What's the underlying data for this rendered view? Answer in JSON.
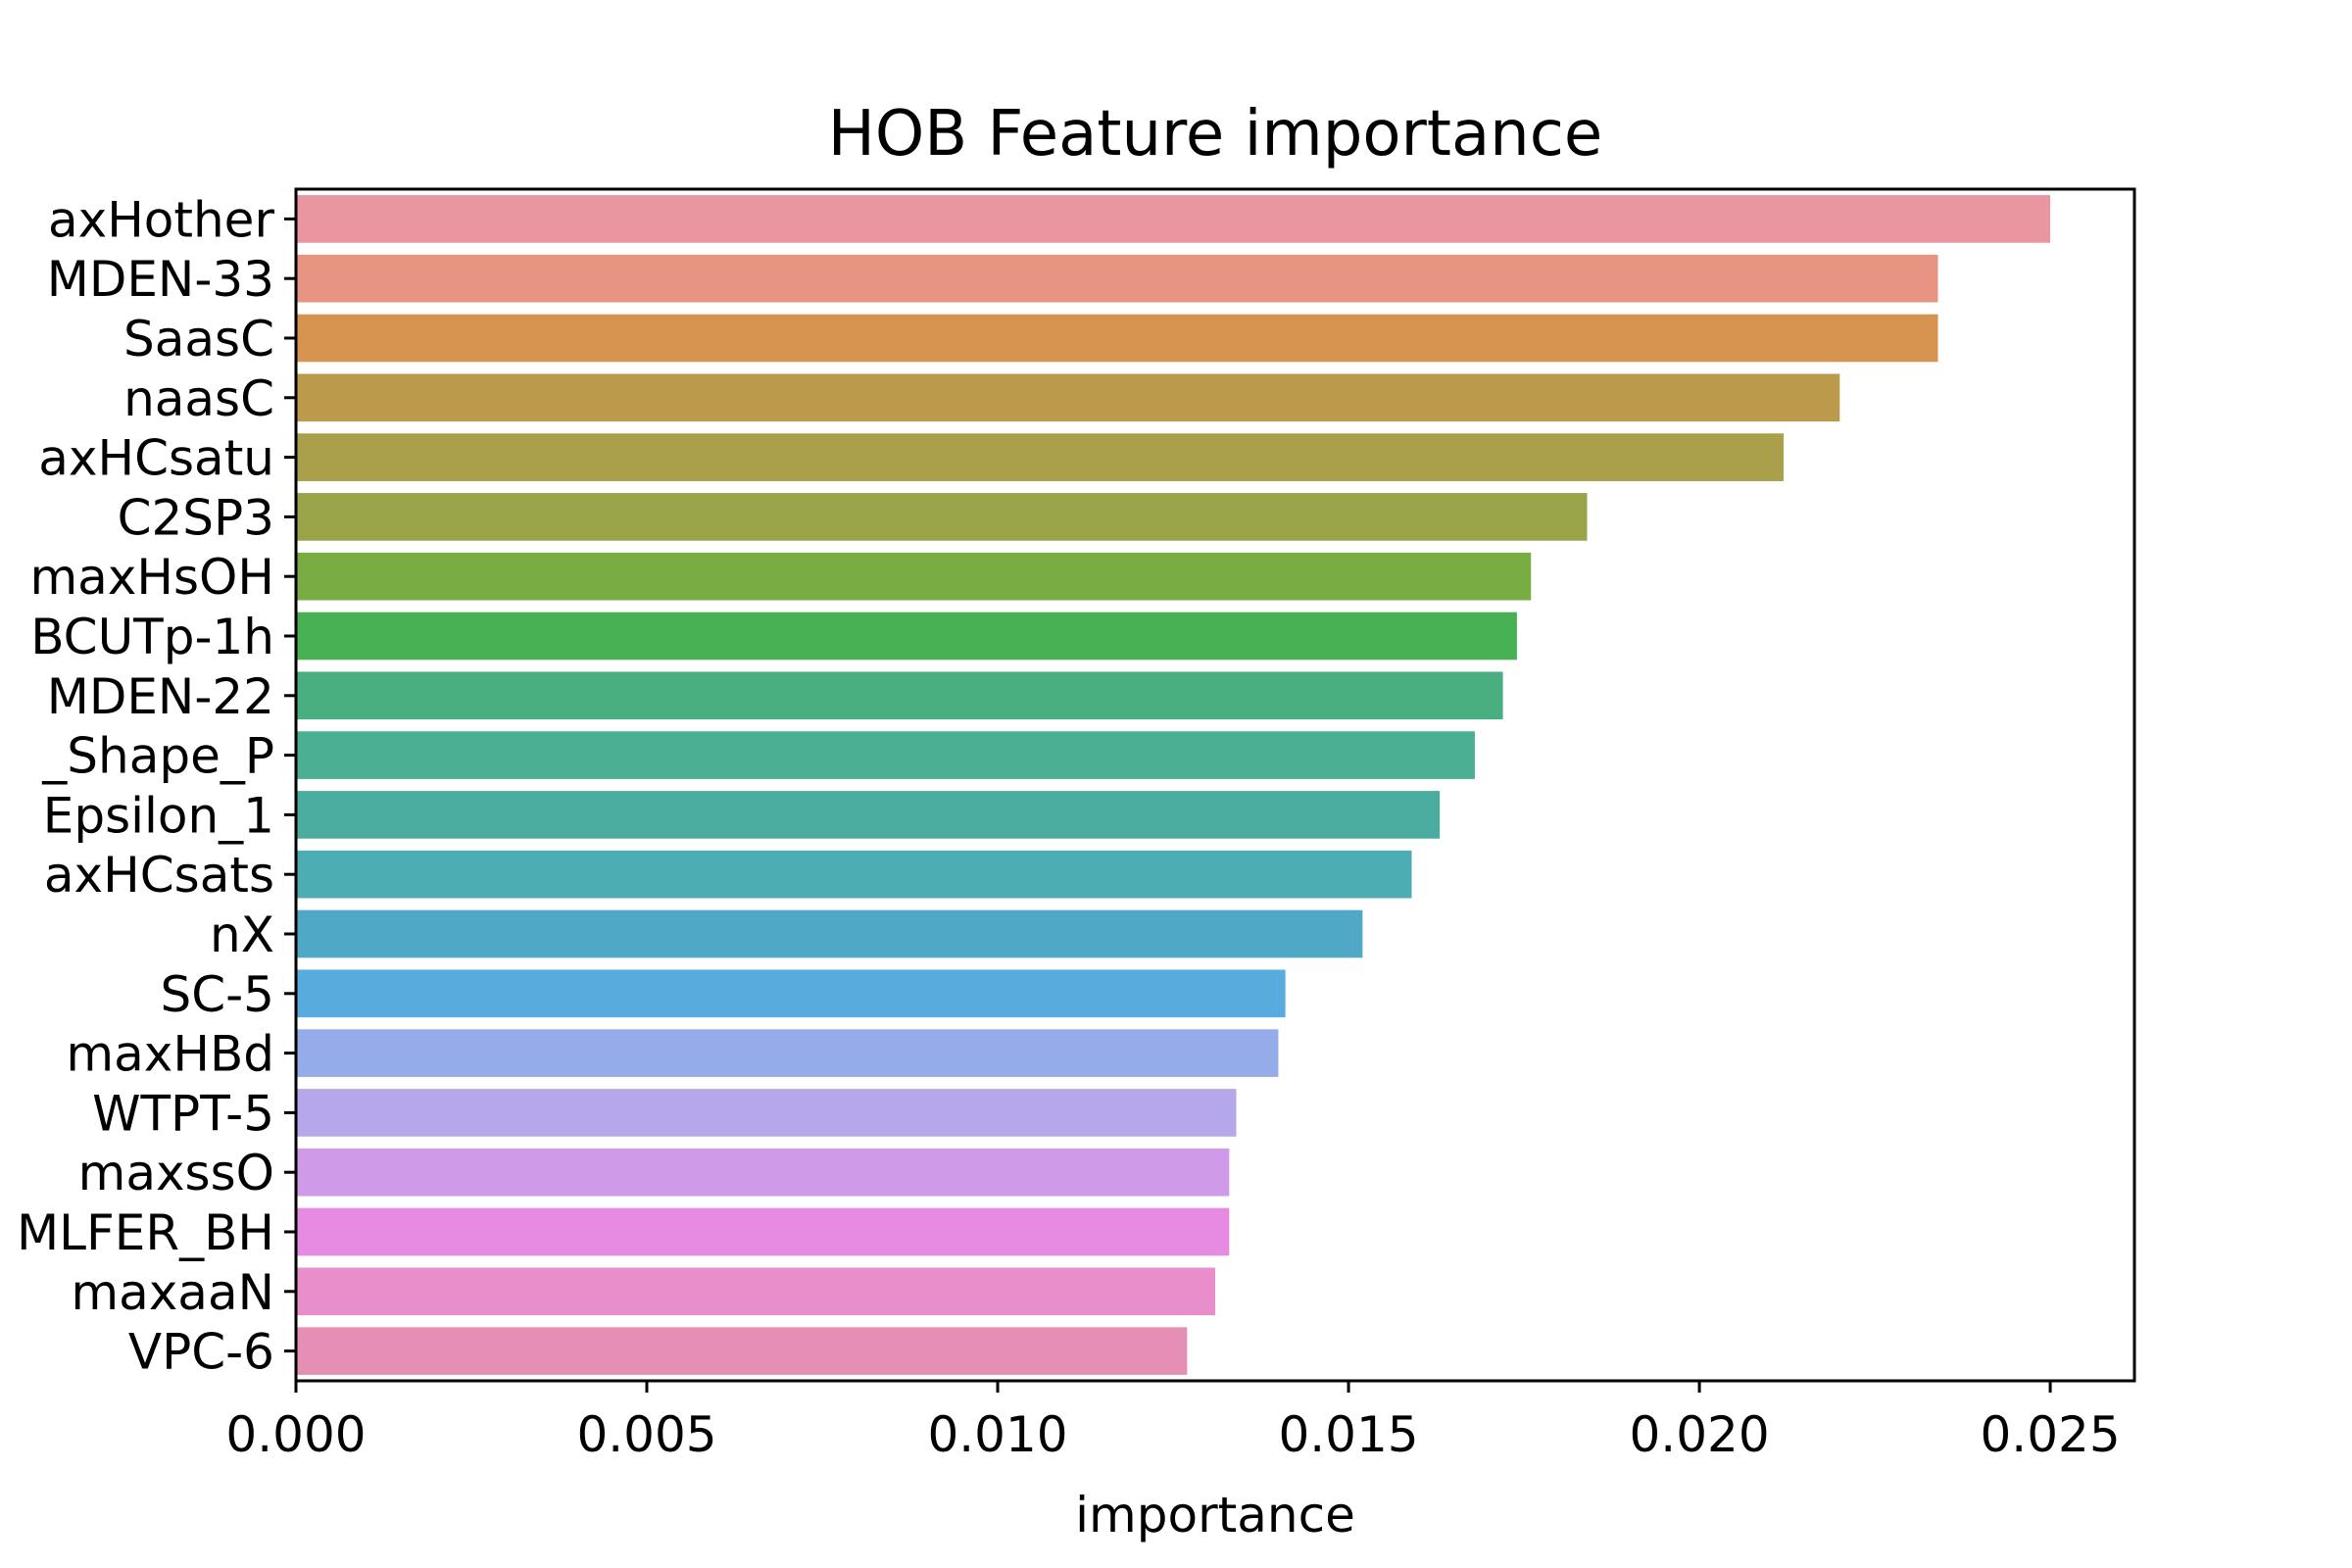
{
  "chart_data": {
    "type": "bar",
    "orientation": "horizontal",
    "title": "HOB Feature importance",
    "xlabel": "importance",
    "ylabel": "",
    "xlim": [
      0,
      0.0262
    ],
    "xticks": [
      "0.000",
      "0.005",
      "0.010",
      "0.015",
      "0.020",
      "0.025"
    ],
    "grid": false,
    "categories": [
      "axHother",
      "MDEN-33",
      "SaasC",
      "naasC",
      "axHCsatu",
      "C2SP3",
      "maxHsOH",
      "BCUTp-1h",
      "MDEN-22",
      "_Shape_P",
      "Epsilon_1",
      "axHCsats",
      "nX",
      "SC-5",
      "maxHBd",
      "WTPT-5",
      "maxssO",
      "MLFER_BH",
      "maxaaN",
      "VPC-6"
    ],
    "values": [
      0.025,
      0.0234,
      0.0234,
      0.022,
      0.0212,
      0.0184,
      0.0176,
      0.0174,
      0.0172,
      0.0168,
      0.0163,
      0.0159,
      0.0152,
      0.0141,
      0.014,
      0.0134,
      0.0133,
      0.0133,
      0.0131,
      0.0127
    ],
    "colors": [
      "#ea96a0",
      "#e79482",
      "#d69350",
      "#bb9b4b",
      "#aa9f4a",
      "#98a447",
      "#7aac44",
      "#47b153",
      "#49ae80",
      "#4aaf93",
      "#4aab9f",
      "#4cadb3",
      "#4fa9c6",
      "#58abdd",
      "#96acea",
      "#b5a7ea",
      "#cf9ae8",
      "#e78be2",
      "#e78ecb",
      "#e68fb4"
    ]
  }
}
